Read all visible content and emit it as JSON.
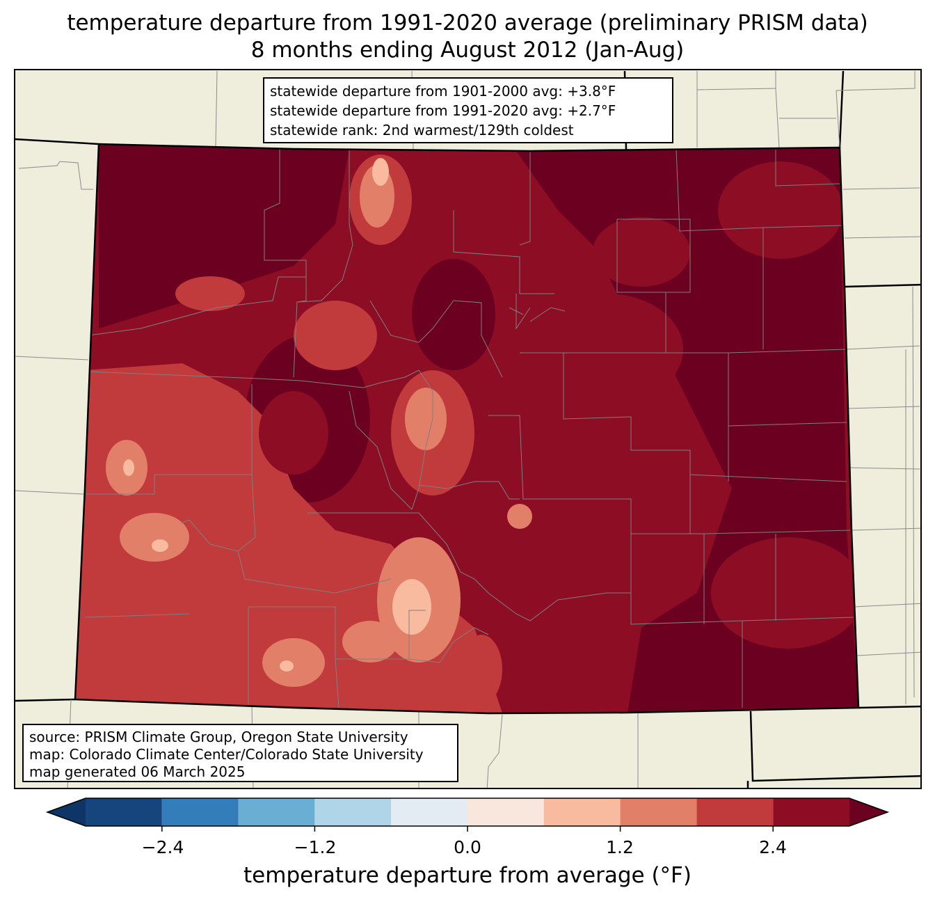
{
  "title": {
    "line1": "temperature departure from 1991-2020 average (preliminary PRISM data)",
    "line2": "8 months ending August 2012 (Jan-Aug)"
  },
  "stats": {
    "line1": "statewide departure from 1901-2000 avg: +3.8°F",
    "line2": "statewide departure from 1991-2020 avg: +2.7°F",
    "line3": "statewide rank: 2nd warmest/129th coldest"
  },
  "credits": {
    "line1": "source: PRISM Climate Group, Oregon State University",
    "line2": "map: Colorado Climate Center/Colorado State University",
    "line3": "map generated 06 March 2025"
  },
  "colorbar": {
    "label": "temperature departure from average (°F)",
    "ticks": [
      "−2.4",
      "−1.2",
      "0.0",
      "1.2",
      "2.4"
    ],
    "bins": [
      {
        "min": -3.0,
        "max": -2.4,
        "color": "#15457c"
      },
      {
        "min": -2.4,
        "max": -1.8,
        "color": "#327dba"
      },
      {
        "min": -1.8,
        "max": -1.2,
        "color": "#6aaed4"
      },
      {
        "min": -1.2,
        "max": -0.6,
        "color": "#b1d5e8"
      },
      {
        "min": -0.6,
        "max": 0.0,
        "color": "#e3ecf3"
      },
      {
        "min": 0.0,
        "max": 0.6,
        "color": "#f9e7dd"
      },
      {
        "min": 0.6,
        "max": 1.2,
        "color": "#f8bba0"
      },
      {
        "min": 1.2,
        "max": 1.8,
        "color": "#e27f69"
      },
      {
        "min": 1.8,
        "max": 2.4,
        "color": "#c13a3c"
      },
      {
        "min": 2.4,
        "max": 3.0,
        "color": "#8c0d24"
      }
    ],
    "under_color": "#0d3565",
    "over_color": "#6c0020"
  },
  "colors": {
    "background_land": "#efeedd",
    "state_border": "#000000",
    "county_border": "#808080"
  }
}
